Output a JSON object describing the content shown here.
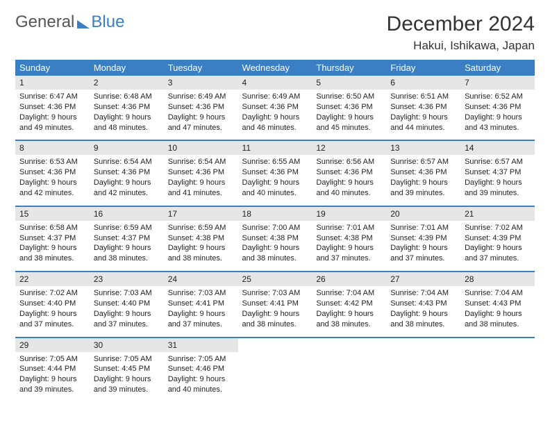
{
  "logo": {
    "text1": "General",
    "text2": "Blue"
  },
  "title": "December 2024",
  "location": "Hakui, Ishikawa, Japan",
  "colors": {
    "header_bg": "#3a7fc4",
    "daynum_bg": "#e6e6e6",
    "row_border": "#3a7fc4",
    "page_bg": "#ffffff",
    "text": "#222222"
  },
  "typography": {
    "title_fontsize": 30,
    "location_fontsize": 17,
    "weekday_fontsize": 13,
    "daynum_fontsize": 12,
    "body_fontsize": 11
  },
  "weekdays": [
    "Sunday",
    "Monday",
    "Tuesday",
    "Wednesday",
    "Thursday",
    "Friday",
    "Saturday"
  ],
  "weeks": [
    [
      {
        "n": "1",
        "sr": "Sunrise: 6:47 AM",
        "ss": "Sunset: 4:36 PM",
        "dl": "Daylight: 9 hours and 49 minutes."
      },
      {
        "n": "2",
        "sr": "Sunrise: 6:48 AM",
        "ss": "Sunset: 4:36 PM",
        "dl": "Daylight: 9 hours and 48 minutes."
      },
      {
        "n": "3",
        "sr": "Sunrise: 6:49 AM",
        "ss": "Sunset: 4:36 PM",
        "dl": "Daylight: 9 hours and 47 minutes."
      },
      {
        "n": "4",
        "sr": "Sunrise: 6:49 AM",
        "ss": "Sunset: 4:36 PM",
        "dl": "Daylight: 9 hours and 46 minutes."
      },
      {
        "n": "5",
        "sr": "Sunrise: 6:50 AM",
        "ss": "Sunset: 4:36 PM",
        "dl": "Daylight: 9 hours and 45 minutes."
      },
      {
        "n": "6",
        "sr": "Sunrise: 6:51 AM",
        "ss": "Sunset: 4:36 PM",
        "dl": "Daylight: 9 hours and 44 minutes."
      },
      {
        "n": "7",
        "sr": "Sunrise: 6:52 AM",
        "ss": "Sunset: 4:36 PM",
        "dl": "Daylight: 9 hours and 43 minutes."
      }
    ],
    [
      {
        "n": "8",
        "sr": "Sunrise: 6:53 AM",
        "ss": "Sunset: 4:36 PM",
        "dl": "Daylight: 9 hours and 42 minutes."
      },
      {
        "n": "9",
        "sr": "Sunrise: 6:54 AM",
        "ss": "Sunset: 4:36 PM",
        "dl": "Daylight: 9 hours and 42 minutes."
      },
      {
        "n": "10",
        "sr": "Sunrise: 6:54 AM",
        "ss": "Sunset: 4:36 PM",
        "dl": "Daylight: 9 hours and 41 minutes."
      },
      {
        "n": "11",
        "sr": "Sunrise: 6:55 AM",
        "ss": "Sunset: 4:36 PM",
        "dl": "Daylight: 9 hours and 40 minutes."
      },
      {
        "n": "12",
        "sr": "Sunrise: 6:56 AM",
        "ss": "Sunset: 4:36 PM",
        "dl": "Daylight: 9 hours and 40 minutes."
      },
      {
        "n": "13",
        "sr": "Sunrise: 6:57 AM",
        "ss": "Sunset: 4:36 PM",
        "dl": "Daylight: 9 hours and 39 minutes."
      },
      {
        "n": "14",
        "sr": "Sunrise: 6:57 AM",
        "ss": "Sunset: 4:37 PM",
        "dl": "Daylight: 9 hours and 39 minutes."
      }
    ],
    [
      {
        "n": "15",
        "sr": "Sunrise: 6:58 AM",
        "ss": "Sunset: 4:37 PM",
        "dl": "Daylight: 9 hours and 38 minutes."
      },
      {
        "n": "16",
        "sr": "Sunrise: 6:59 AM",
        "ss": "Sunset: 4:37 PM",
        "dl": "Daylight: 9 hours and 38 minutes."
      },
      {
        "n": "17",
        "sr": "Sunrise: 6:59 AM",
        "ss": "Sunset: 4:38 PM",
        "dl": "Daylight: 9 hours and 38 minutes."
      },
      {
        "n": "18",
        "sr": "Sunrise: 7:00 AM",
        "ss": "Sunset: 4:38 PM",
        "dl": "Daylight: 9 hours and 38 minutes."
      },
      {
        "n": "19",
        "sr": "Sunrise: 7:01 AM",
        "ss": "Sunset: 4:38 PM",
        "dl": "Daylight: 9 hours and 37 minutes."
      },
      {
        "n": "20",
        "sr": "Sunrise: 7:01 AM",
        "ss": "Sunset: 4:39 PM",
        "dl": "Daylight: 9 hours and 37 minutes."
      },
      {
        "n": "21",
        "sr": "Sunrise: 7:02 AM",
        "ss": "Sunset: 4:39 PM",
        "dl": "Daylight: 9 hours and 37 minutes."
      }
    ],
    [
      {
        "n": "22",
        "sr": "Sunrise: 7:02 AM",
        "ss": "Sunset: 4:40 PM",
        "dl": "Daylight: 9 hours and 37 minutes."
      },
      {
        "n": "23",
        "sr": "Sunrise: 7:03 AM",
        "ss": "Sunset: 4:40 PM",
        "dl": "Daylight: 9 hours and 37 minutes."
      },
      {
        "n": "24",
        "sr": "Sunrise: 7:03 AM",
        "ss": "Sunset: 4:41 PM",
        "dl": "Daylight: 9 hours and 37 minutes."
      },
      {
        "n": "25",
        "sr": "Sunrise: 7:03 AM",
        "ss": "Sunset: 4:41 PM",
        "dl": "Daylight: 9 hours and 38 minutes."
      },
      {
        "n": "26",
        "sr": "Sunrise: 7:04 AM",
        "ss": "Sunset: 4:42 PM",
        "dl": "Daylight: 9 hours and 38 minutes."
      },
      {
        "n": "27",
        "sr": "Sunrise: 7:04 AM",
        "ss": "Sunset: 4:43 PM",
        "dl": "Daylight: 9 hours and 38 minutes."
      },
      {
        "n": "28",
        "sr": "Sunrise: 7:04 AM",
        "ss": "Sunset: 4:43 PM",
        "dl": "Daylight: 9 hours and 38 minutes."
      }
    ],
    [
      {
        "n": "29",
        "sr": "Sunrise: 7:05 AM",
        "ss": "Sunset: 4:44 PM",
        "dl": "Daylight: 9 hours and 39 minutes."
      },
      {
        "n": "30",
        "sr": "Sunrise: 7:05 AM",
        "ss": "Sunset: 4:45 PM",
        "dl": "Daylight: 9 hours and 39 minutes."
      },
      {
        "n": "31",
        "sr": "Sunrise: 7:05 AM",
        "ss": "Sunset: 4:46 PM",
        "dl": "Daylight: 9 hours and 40 minutes."
      },
      null,
      null,
      null,
      null
    ]
  ]
}
